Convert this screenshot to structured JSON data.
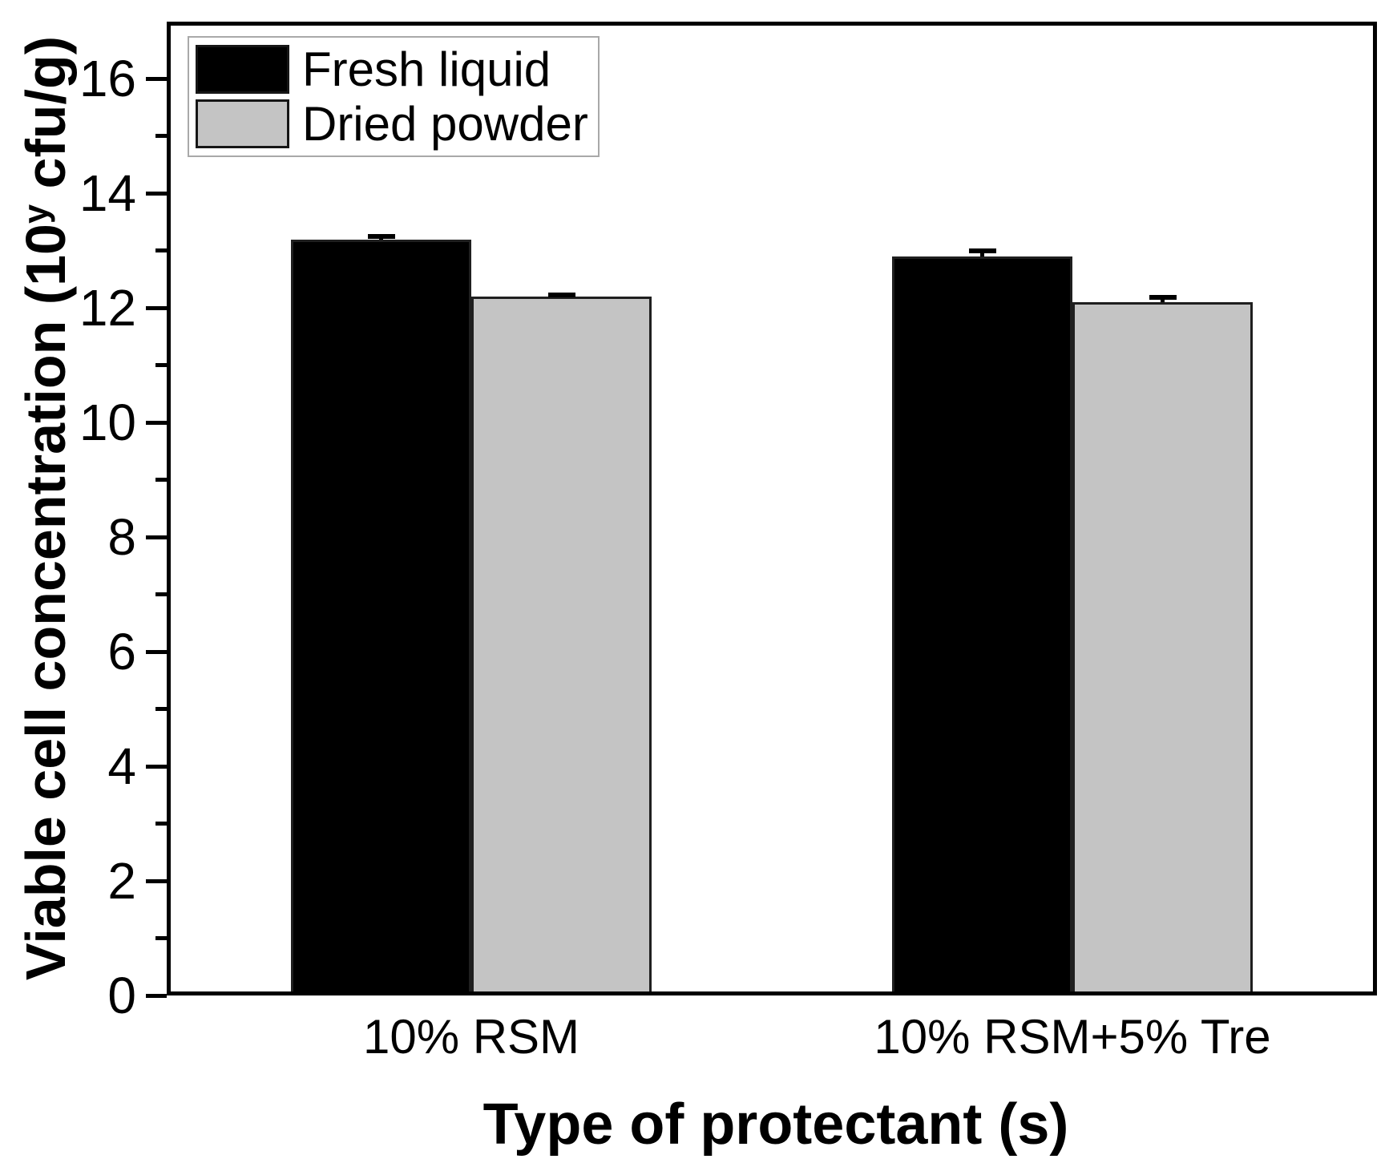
{
  "chart_data": {
    "type": "bar",
    "title": "",
    "xlabel": "Type of protectant (s)",
    "ylabel": "Viable cell concentration (10^y cfu/g)",
    "ylabel_parts": {
      "prefix": "Viable cell concentration (10",
      "superscript": "y",
      "suffix": " cfu/g)"
    },
    "categories": [
      "10% RSM",
      "10% RSM+5% Tre"
    ],
    "series": [
      {
        "name": "Fresh liquid",
        "color": "#000000",
        "values": [
          13.2,
          12.9
        ],
        "errors": [
          0.05,
          0.1
        ]
      },
      {
        "name": "Dried powder",
        "color": "#c4c4c4",
        "values": [
          12.2,
          12.1
        ],
        "errors": [
          0.03,
          0.08
        ]
      }
    ],
    "ylim": [
      0,
      17
    ],
    "yticks": [
      0,
      2,
      4,
      6,
      8,
      10,
      12,
      14,
      16
    ],
    "yticks_minor": [
      1,
      3,
      5,
      7,
      9,
      11,
      13,
      15
    ],
    "legend_position": "top-left",
    "grid": false,
    "colors": {
      "axis": "#000000",
      "bar_edge": "#1f1f1f",
      "gray_fill": "#c4c4c4",
      "black_fill": "#000000",
      "legend_border": "#a9a9a9"
    }
  }
}
